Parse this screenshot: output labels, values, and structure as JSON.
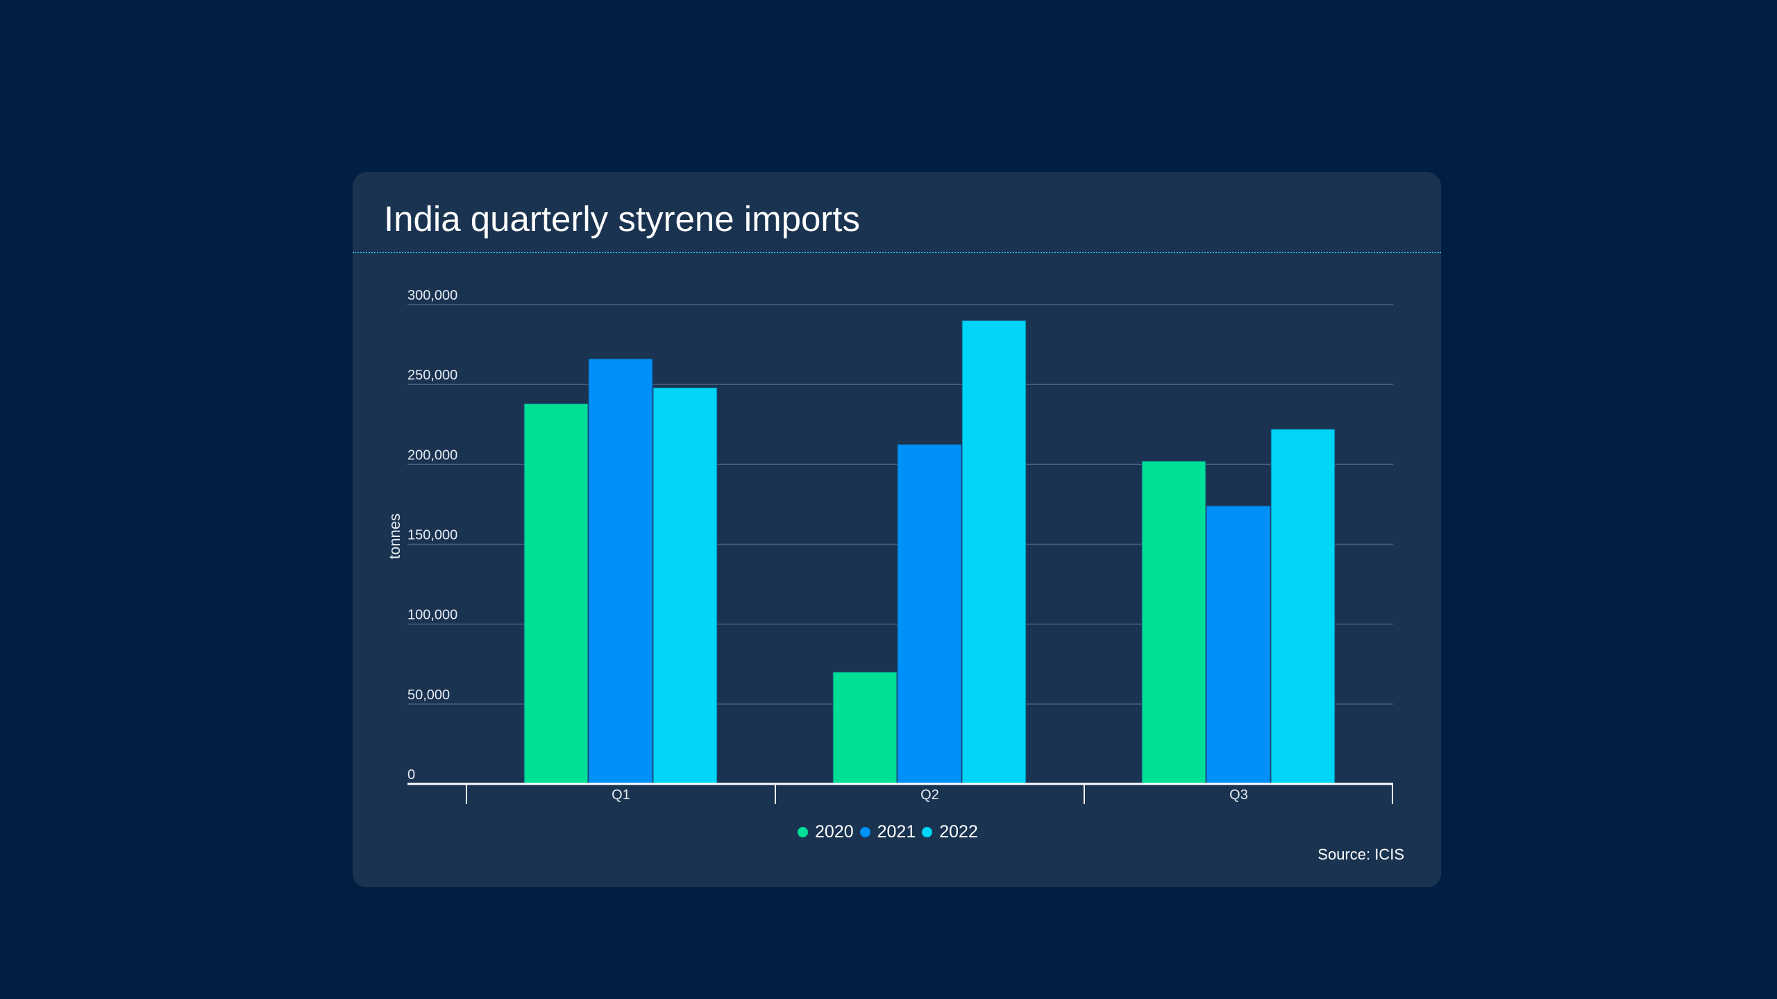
{
  "chart_data": {
    "type": "bar",
    "title": "India quarterly styrene imports",
    "xlabel": "",
    "ylabel": "tonnes",
    "categories": [
      "Q1",
      "Q2",
      "Q3"
    ],
    "series": [
      {
        "name": "2020",
        "color": "#00df96",
        "values": [
          238000,
          70000,
          202000
        ]
      },
      {
        "name": "2021",
        "color": "#0090fa",
        "values": [
          266000,
          212500,
          174000
        ]
      },
      {
        "name": "2022",
        "color": "#00d5f8",
        "values": [
          248000,
          290000,
          222000
        ]
      }
    ],
    "ylim": [
      0,
      300000
    ],
    "yticks": [
      0,
      50000,
      100000,
      150000,
      200000,
      250000,
      300000
    ],
    "ytick_labels": [
      "0",
      "50,000",
      "100,000",
      "150,000",
      "200,000",
      "250,000",
      "300,000"
    ],
    "grid": true,
    "legend_position": "bottom-center",
    "source": "Source: ICIS"
  },
  "colors": {
    "background": "#011f42",
    "card": "#1a3350",
    "accent_rule": "#2fb4e0"
  }
}
